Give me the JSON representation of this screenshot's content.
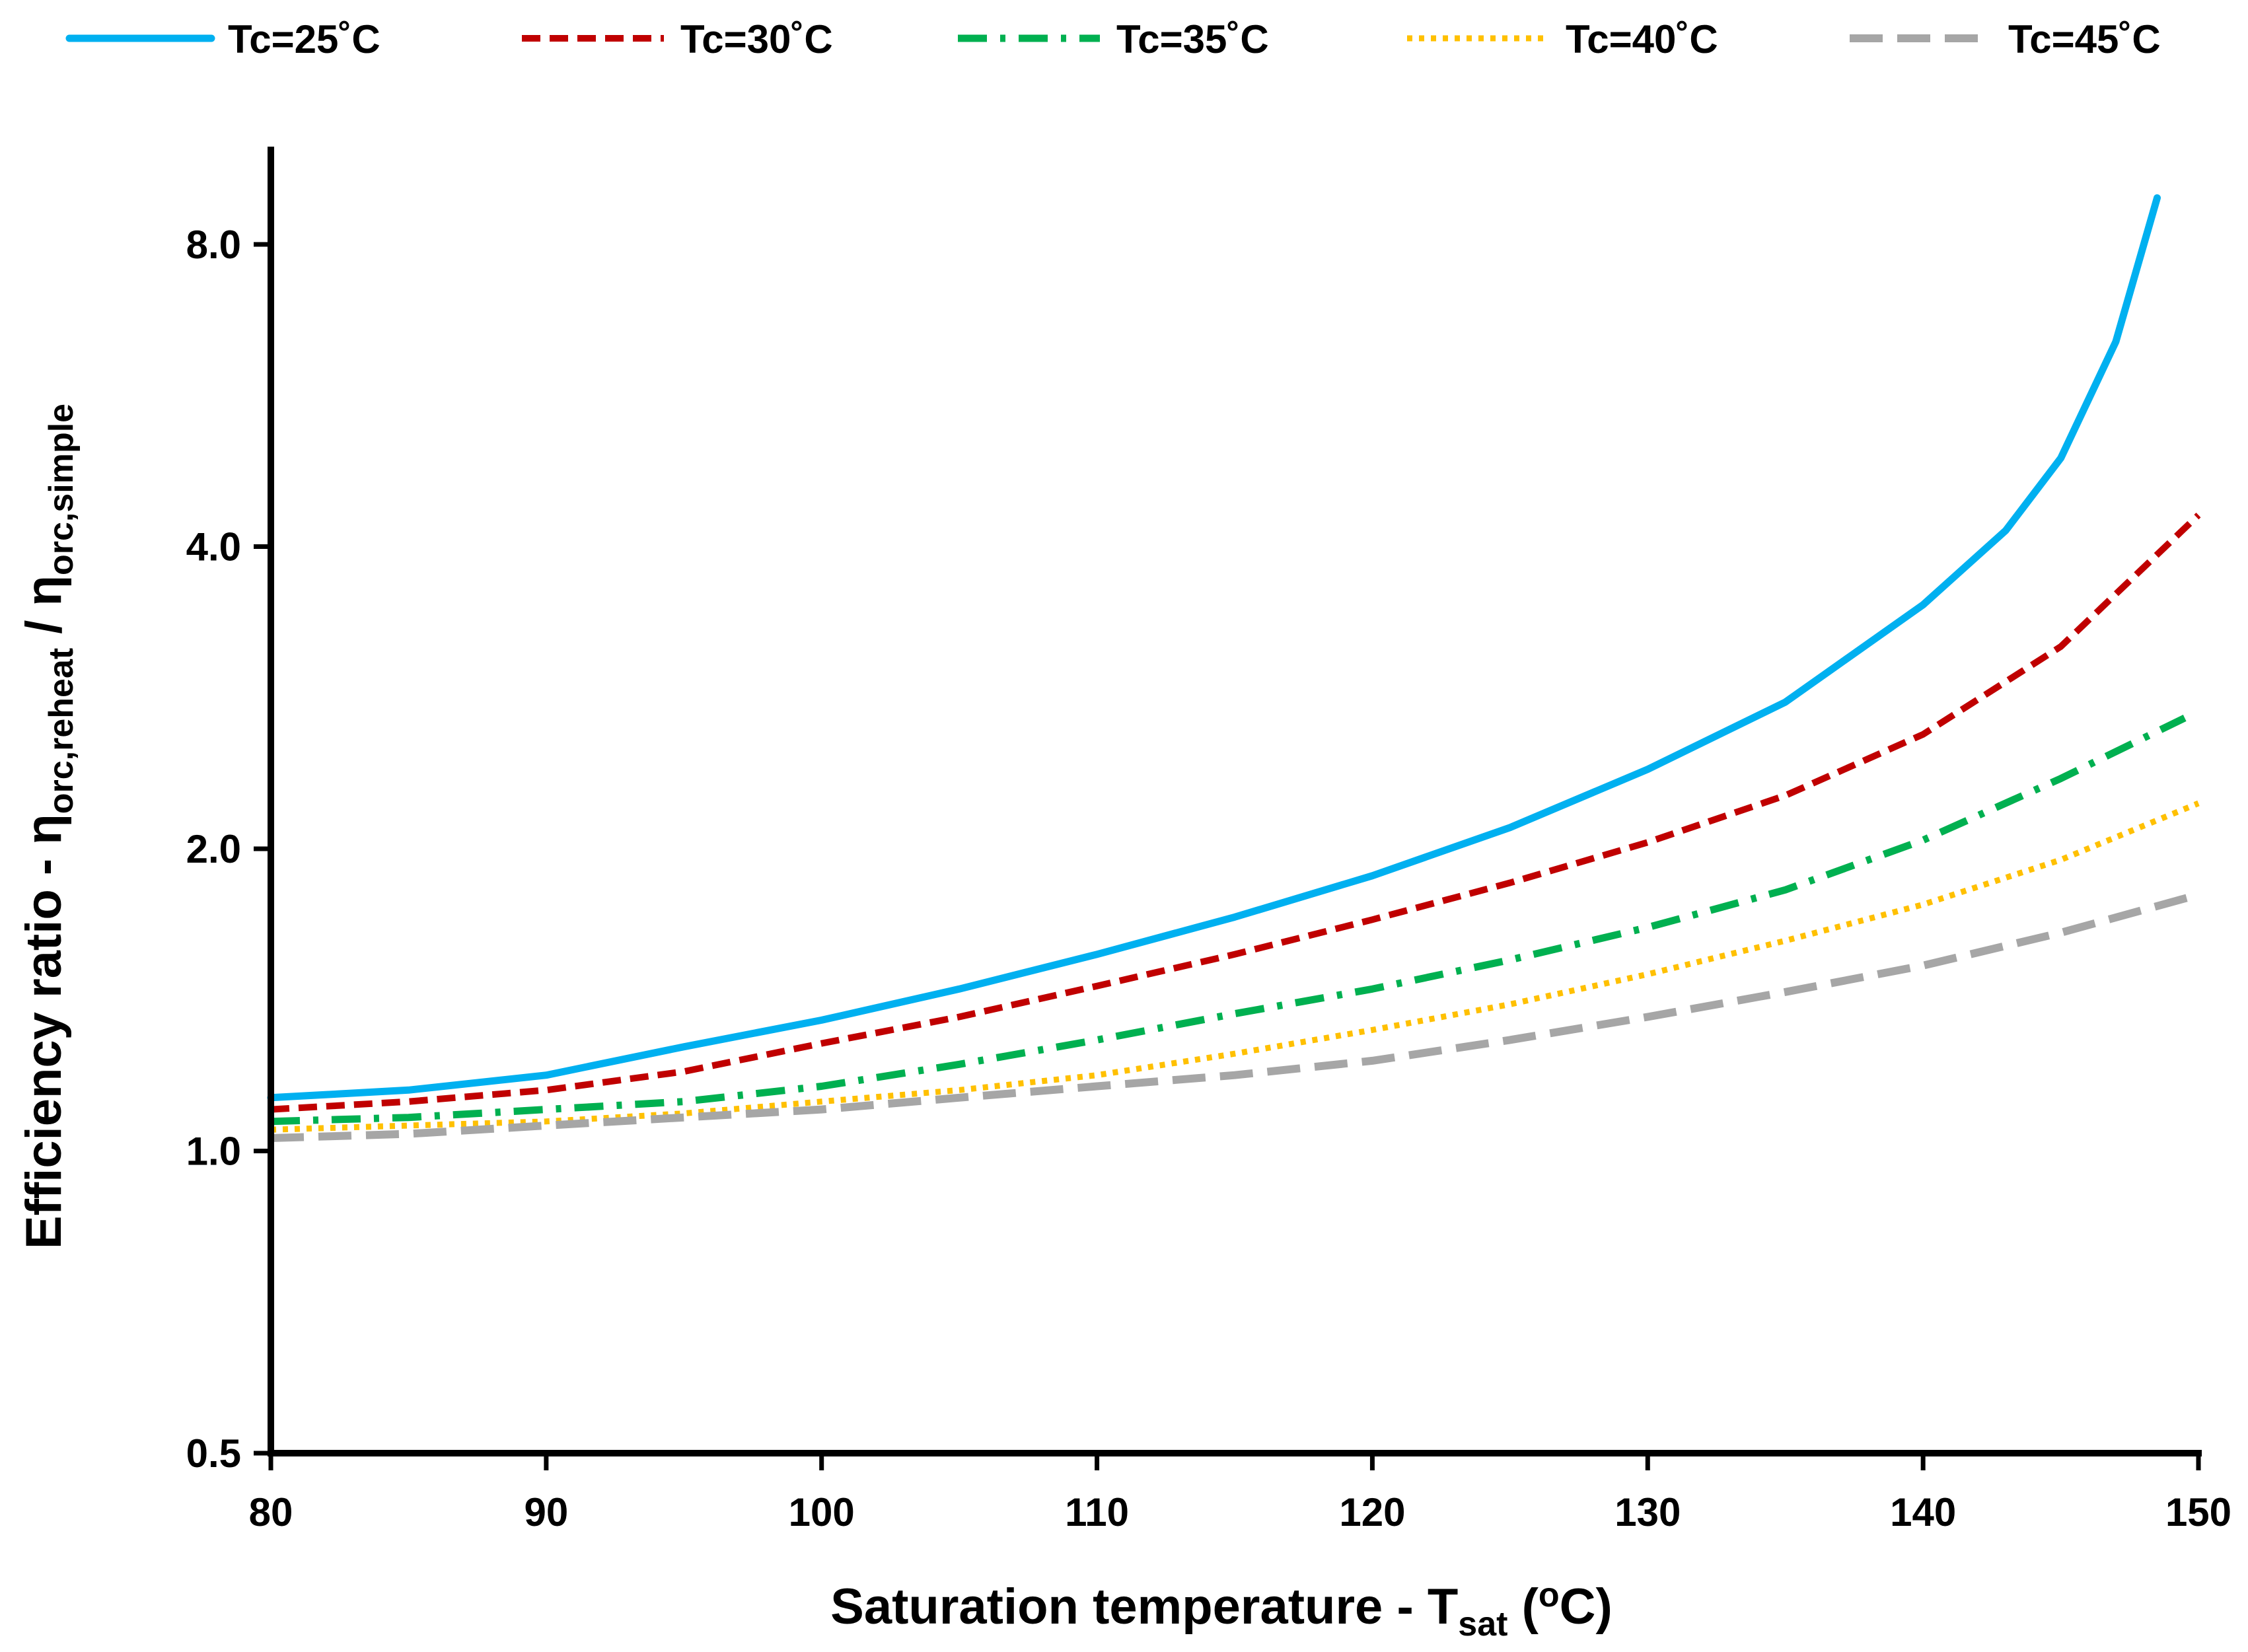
{
  "chart_data": {
    "type": "line",
    "title": "",
    "xlabel": {
      "main": "Saturation temperature - T",
      "sub": "sat",
      "tail_open": " (",
      "sup": "o",
      "tail_close": "C)"
    },
    "ylabel": {
      "main": "Efficiency ratio - η",
      "sub1": "orc,reheat",
      "mid": " / η",
      "sub2": "orc,simple"
    },
    "xlim": [
      80,
      150
    ],
    "ylim": [
      0.5,
      10.0
    ],
    "yscale": "log2",
    "x_ticks": [
      80,
      90,
      100,
      110,
      120,
      130,
      140,
      150
    ],
    "x_tick_labels": [
      "80",
      "90",
      "100",
      "110",
      "120",
      "130",
      "140",
      "150"
    ],
    "y_ticks": [
      0.5,
      1.0,
      2.0,
      4.0,
      8.0
    ],
    "y_tick_labels": [
      "0.5",
      "1.0",
      "2.0",
      "4.0",
      "8.0"
    ],
    "grid": false,
    "legend_position": "top",
    "series": [
      {
        "name": "Tc=25˚C",
        "color": "#00B0F0",
        "style": "solid",
        "x": [
          80,
          85,
          90,
          95,
          100,
          105,
          110,
          115,
          120,
          125,
          130,
          135,
          140,
          143,
          145,
          147,
          148.5
        ],
        "y": [
          1.13,
          1.15,
          1.19,
          1.27,
          1.35,
          1.45,
          1.57,
          1.71,
          1.88,
          2.1,
          2.4,
          2.8,
          3.5,
          4.15,
          4.9,
          6.4,
          8.9
        ]
      },
      {
        "name": "Tc=30˚C",
        "color": "#C00000",
        "style": "dash",
        "x": [
          80,
          85,
          90,
          95,
          100,
          105,
          110,
          115,
          120,
          125,
          130,
          135,
          140,
          145,
          150
        ],
        "y": [
          1.1,
          1.12,
          1.15,
          1.2,
          1.28,
          1.36,
          1.46,
          1.57,
          1.7,
          1.85,
          2.03,
          2.26,
          2.6,
          3.18,
          4.3
        ]
      },
      {
        "name": "Tc=35˚C",
        "color": "#00B050",
        "style": "dashdot",
        "x": [
          80,
          85,
          90,
          95,
          100,
          105,
          110,
          115,
          120,
          125,
          130,
          135,
          140,
          145,
          149.5
        ],
        "y": [
          1.07,
          1.08,
          1.1,
          1.12,
          1.16,
          1.22,
          1.29,
          1.37,
          1.45,
          1.55,
          1.67,
          1.82,
          2.04,
          2.35,
          2.7
        ]
      },
      {
        "name": "Tc=40˚C",
        "color": "#FFC000",
        "style": "dot",
        "x": [
          80,
          85,
          90,
          95,
          100,
          105,
          110,
          115,
          120,
          125,
          130,
          135,
          140,
          145,
          150
        ],
        "y": [
          1.05,
          1.06,
          1.07,
          1.09,
          1.12,
          1.15,
          1.19,
          1.25,
          1.32,
          1.4,
          1.5,
          1.62,
          1.76,
          1.95,
          2.22
        ]
      },
      {
        "name": "Tc=45˚C",
        "color": "#A6A6A6",
        "style": "longdash",
        "x": [
          80,
          85,
          90,
          95,
          100,
          105,
          110,
          115,
          120,
          125,
          130,
          135,
          140,
          145,
          150
        ],
        "y": [
          1.03,
          1.04,
          1.06,
          1.08,
          1.1,
          1.13,
          1.16,
          1.19,
          1.23,
          1.29,
          1.36,
          1.44,
          1.53,
          1.65,
          1.8
        ]
      }
    ]
  }
}
